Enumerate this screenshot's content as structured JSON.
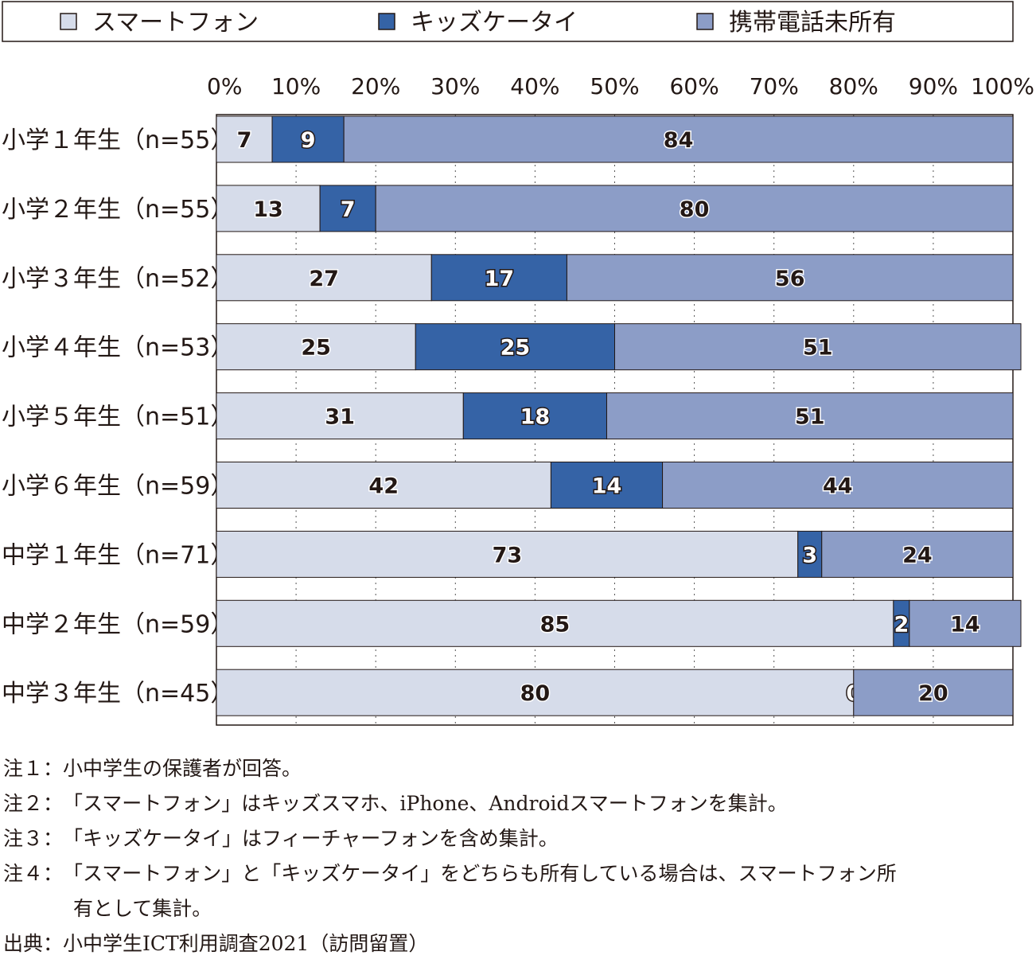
{
  "chart_data": {
    "type": "bar",
    "orientation": "horizontal",
    "stacked": "100%",
    "legend": {
      "position": "top",
      "entries": [
        {
          "name": "スマートフォン",
          "color": "#d6dcea"
        },
        {
          "name": "キッズケータイ",
          "color": "#3563a6"
        },
        {
          "name": "携帯電話未所有",
          "color": "#8c9dc7"
        }
      ]
    },
    "x_ticks": [
      "0%",
      "10%",
      "20%",
      "30%",
      "40%",
      "50%",
      "60%",
      "70%",
      "80%",
      "90%",
      "100%"
    ],
    "xlim": [
      0,
      100
    ],
    "grid": "vertical dotted",
    "categories": [
      "小学１年生（n=55）",
      "小学２年生（n=55）",
      "小学３年生（n=52）",
      "小学４年生（n=53）",
      "小学５年生（n=51）",
      "小学６年生（n=59）",
      "中学１年生（n=71）",
      "中学２年生（n=59）",
      "中学３年生（n=45）"
    ],
    "series": [
      {
        "name": "スマートフォン",
        "values": [
          7,
          13,
          27,
          25,
          31,
          42,
          73,
          85,
          80
        ]
      },
      {
        "name": "キッズケータイ",
        "values": [
          9,
          7,
          17,
          25,
          18,
          14,
          3,
          2,
          0
        ]
      },
      {
        "name": "携帯電話未所有",
        "values": [
          84,
          80,
          56,
          51,
          51,
          44,
          24,
          14,
          20
        ]
      }
    ]
  },
  "notes": [
    {
      "prefix": "注１：",
      "text": "小中学生の保護者が回答。"
    },
    {
      "prefix": "注２：",
      "text": "「スマートフォン」はキッズスマホ、iPhone、Androidスマートフォンを集計。"
    },
    {
      "prefix": "注３：",
      "text": "「キッズケータイ」はフィーチャーフォンを含め集計。"
    },
    {
      "prefix": "注４：",
      "text": "「スマートフォン」と「キッズケータイ」をどちらも所有している場合は、スマートフォン所",
      "continuation": "有として集計。"
    }
  ],
  "source": {
    "prefix": "出典：",
    "text": "小中学生ICT利用調査2021（訪問留置）"
  }
}
